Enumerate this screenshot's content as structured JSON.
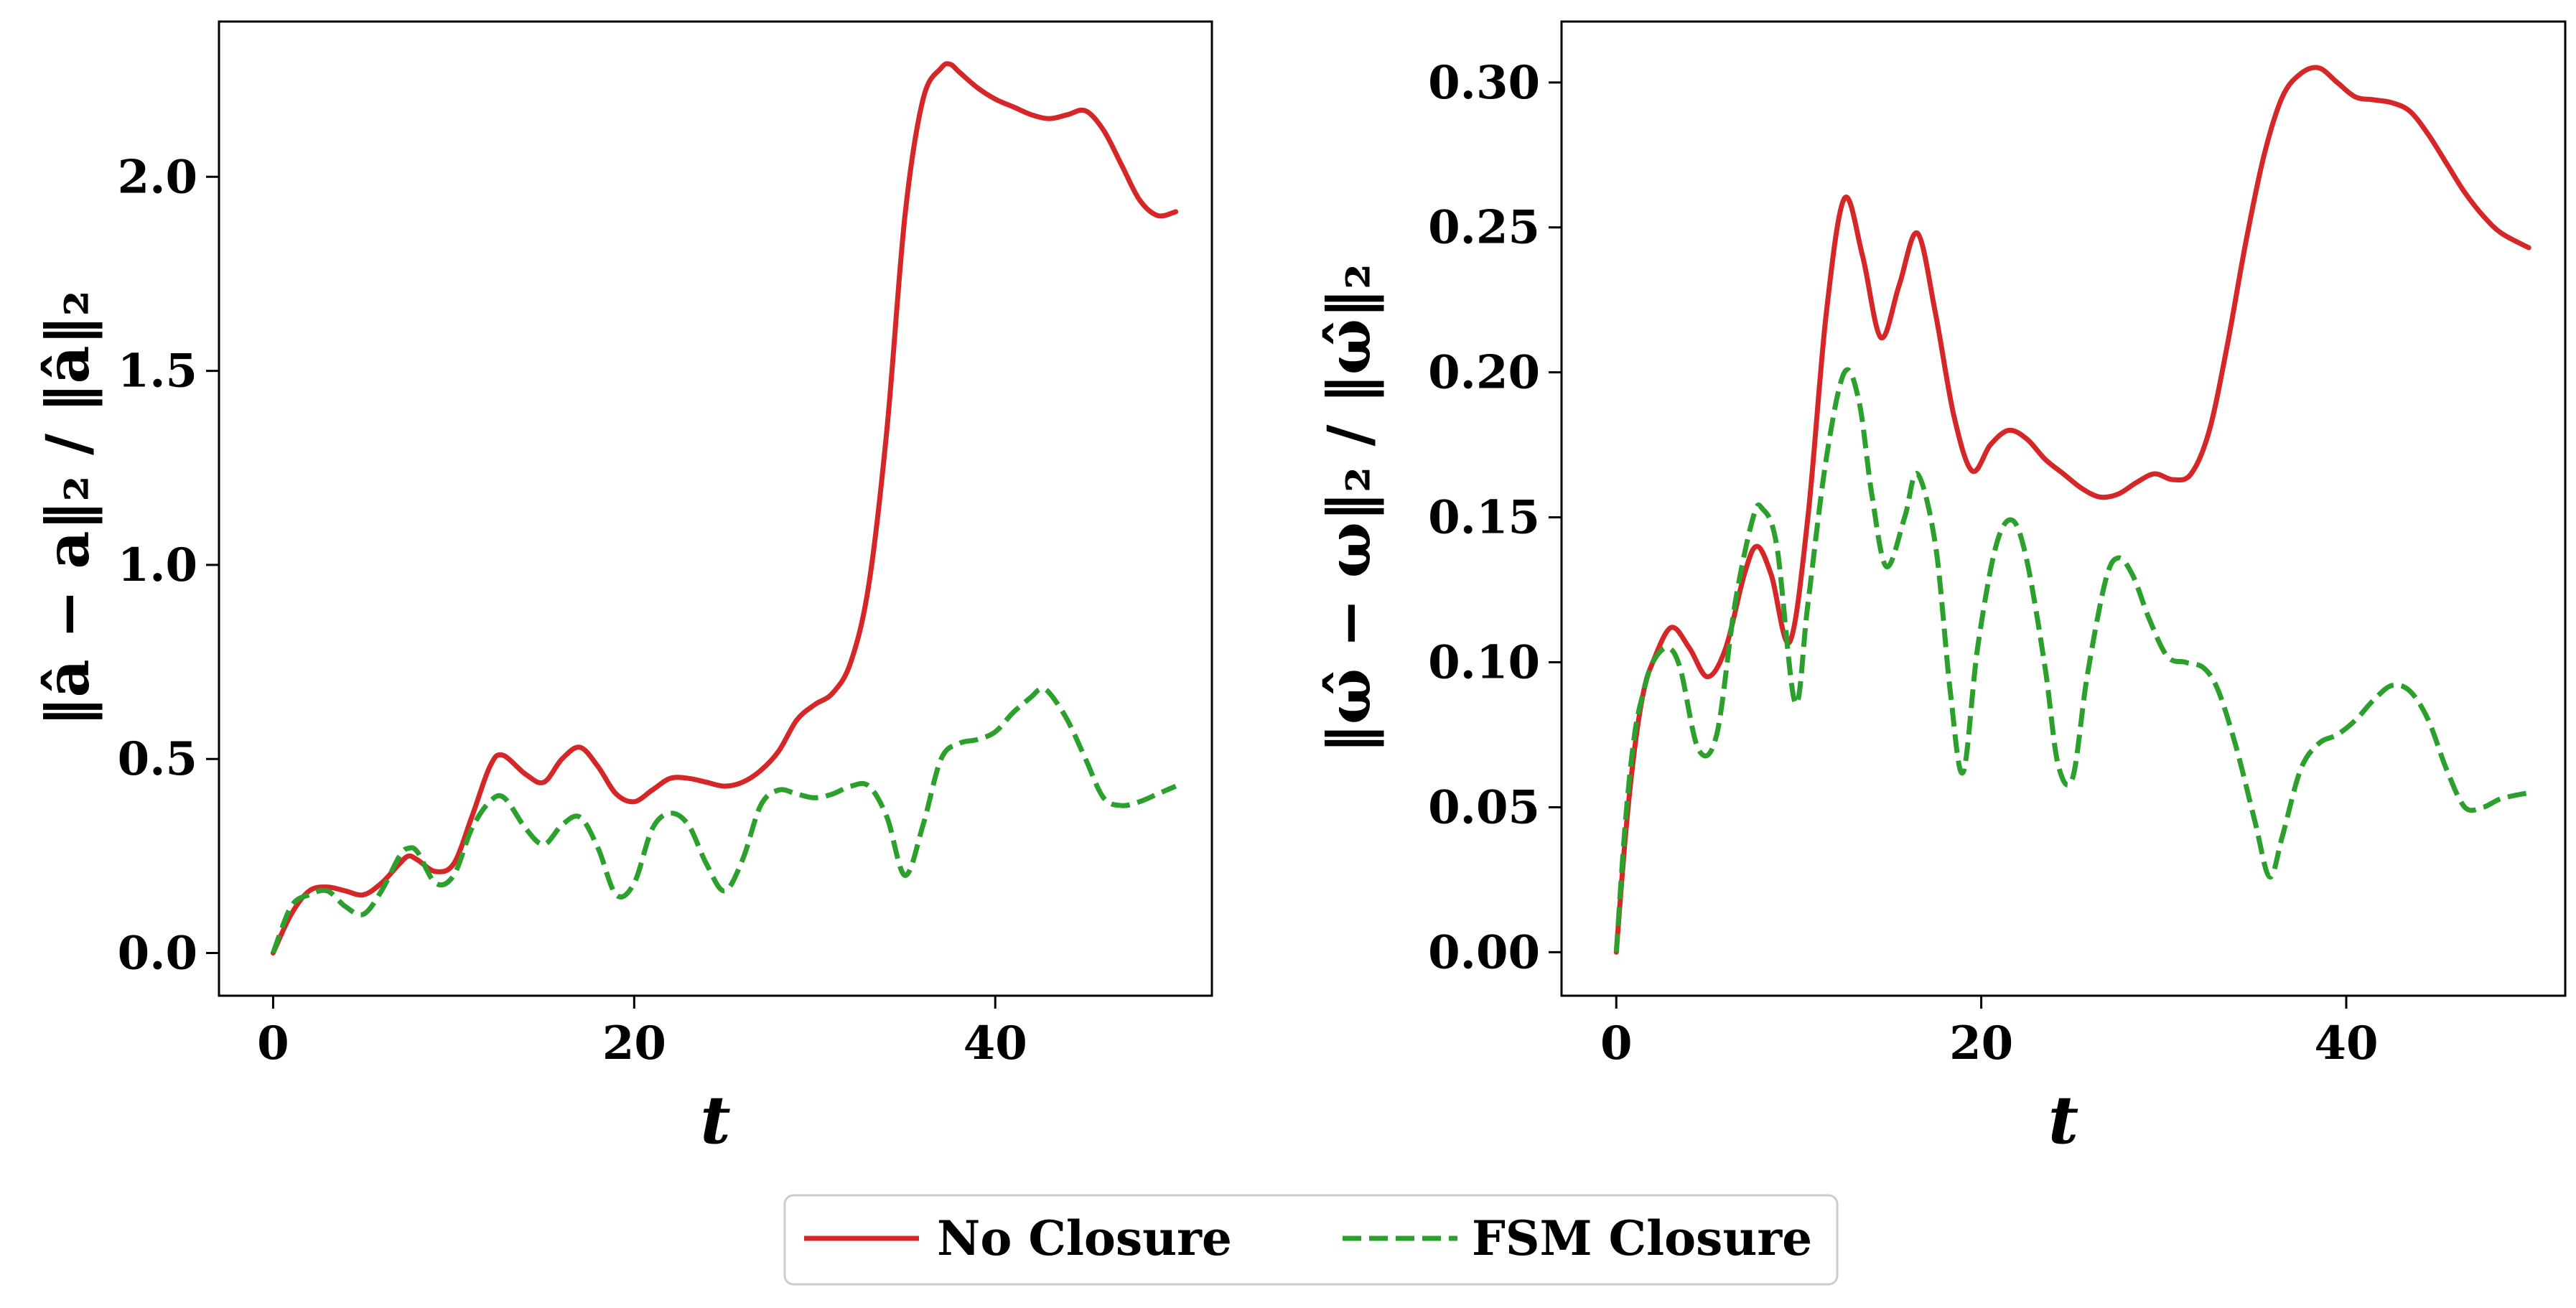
{
  "legend": {
    "placement": "bottom-center",
    "entries": [
      {
        "label": "No Closure",
        "color": "#d62728",
        "style": "solid"
      },
      {
        "label": "FSM Closure",
        "color": "#2ca02c",
        "style": "dashed"
      }
    ]
  },
  "chart_data": [
    {
      "type": "line",
      "xlabel": "t",
      "ylabel": "‖â − a‖₂ / ‖â‖₂",
      "xlim": [
        -3,
        52
      ],
      "ylim": [
        -0.11,
        2.4
      ],
      "xticks": [
        0,
        20,
        40
      ],
      "xtick_labels": [
        "0",
        "20",
        "40"
      ],
      "yticks": [
        0.0,
        0.5,
        1.0,
        1.5,
        2.0
      ],
      "ytick_labels": [
        "0.0",
        "0.5",
        "1.0",
        "1.5",
        "2.0"
      ],
      "grid": false,
      "series": [
        {
          "name": "No Closure",
          "color": "#d62728",
          "style": "solid",
          "x": [
            0,
            1,
            2,
            3,
            4,
            5,
            6,
            7,
            7.5,
            8,
            9,
            10,
            11,
            12,
            12.7,
            14,
            15,
            16,
            17,
            18,
            19,
            20,
            21,
            22,
            23,
            24,
            25,
            26,
            27,
            28,
            29,
            30,
            31,
            32,
            33,
            34,
            35,
            36,
            37,
            37.5,
            38,
            39,
            40,
            41,
            42,
            43,
            44,
            45,
            46,
            47,
            48,
            49,
            50
          ],
          "y": [
            0,
            0.1,
            0.16,
            0.17,
            0.16,
            0.15,
            0.18,
            0.23,
            0.25,
            0.24,
            0.21,
            0.23,
            0.35,
            0.48,
            0.51,
            0.46,
            0.44,
            0.5,
            0.53,
            0.48,
            0.41,
            0.39,
            0.42,
            0.45,
            0.45,
            0.44,
            0.43,
            0.44,
            0.47,
            0.52,
            0.6,
            0.64,
            0.67,
            0.75,
            0.95,
            1.35,
            1.9,
            2.2,
            2.28,
            2.29,
            2.27,
            2.23,
            2.2,
            2.18,
            2.16,
            2.15,
            2.16,
            2.17,
            2.12,
            2.03,
            1.94,
            1.9,
            1.91
          ]
        },
        {
          "name": "FSM Closure",
          "color": "#2ca02c",
          "style": "dashed",
          "x": [
            0,
            1,
            2,
            3,
            4,
            5,
            6,
            7,
            7.5,
            8,
            9,
            10,
            11,
            12,
            12.8,
            14,
            15,
            16,
            17,
            18,
            19,
            20,
            21,
            22,
            23,
            24,
            25,
            26,
            27,
            28,
            29,
            30,
            31,
            32,
            33,
            34,
            35,
            36,
            37,
            38,
            39,
            40,
            41,
            42,
            42.5,
            43,
            44,
            45,
            46,
            47,
            48,
            49,
            50
          ],
          "y": [
            0,
            0.12,
            0.15,
            0.16,
            0.12,
            0.1,
            0.16,
            0.25,
            0.27,
            0.26,
            0.18,
            0.2,
            0.32,
            0.39,
            0.4,
            0.32,
            0.28,
            0.33,
            0.35,
            0.27,
            0.15,
            0.18,
            0.32,
            0.36,
            0.33,
            0.23,
            0.16,
            0.24,
            0.38,
            0.42,
            0.41,
            0.4,
            0.41,
            0.43,
            0.43,
            0.35,
            0.2,
            0.33,
            0.5,
            0.54,
            0.55,
            0.57,
            0.62,
            0.66,
            0.68,
            0.67,
            0.6,
            0.5,
            0.4,
            0.38,
            0.39,
            0.41,
            0.43
          ]
        }
      ]
    },
    {
      "type": "line",
      "xlabel": "t",
      "ylabel": "‖ω̂ − ω‖₂ / ‖ω̂‖₂",
      "xlim": [
        -3,
        52
      ],
      "ylim": [
        -0.015,
        0.321
      ],
      "xticks": [
        0,
        20,
        40
      ],
      "xtick_labels": [
        "0",
        "20",
        "40"
      ],
      "yticks": [
        0.0,
        0.05,
        0.1,
        0.15,
        0.2,
        0.25,
        0.3
      ],
      "ytick_labels": [
        "0.00",
        "0.05",
        "0.10",
        "0.15",
        "0.20",
        "0.25",
        "0.30"
      ],
      "grid": false,
      "series": [
        {
          "name": "No Closure",
          "color": "#d62728",
          "style": "solid",
          "x": [
            0,
            0.5,
            1,
            1.5,
            2,
            3,
            4,
            5,
            6,
            7,
            7.7,
            8.5,
            9.5,
            10.5,
            11.5,
            12.5,
            13.5,
            14.5,
            15.5,
            16.5,
            17.5,
            18.5,
            19.5,
            20.5,
            21.5,
            22.5,
            23.5,
            24.5,
            25.5,
            26.5,
            27.5,
            28.5,
            29.5,
            30.5,
            31.5,
            32.5,
            33.5,
            34.5,
            35.5,
            36.5,
            37.5,
            38.5,
            39.5,
            40.5,
            41.5,
            42.5,
            43.5,
            44.5,
            45.5,
            46.5,
            47.5,
            48.5,
            50
          ],
          "y": [
            0,
            0.04,
            0.07,
            0.09,
            0.1,
            0.112,
            0.105,
            0.095,
            0.105,
            0.13,
            0.14,
            0.13,
            0.107,
            0.15,
            0.22,
            0.26,
            0.24,
            0.212,
            0.23,
            0.248,
            0.22,
            0.185,
            0.166,
            0.175,
            0.18,
            0.177,
            0.17,
            0.165,
            0.16,
            0.157,
            0.158,
            0.162,
            0.165,
            0.163,
            0.165,
            0.18,
            0.21,
            0.245,
            0.275,
            0.295,
            0.303,
            0.305,
            0.3,
            0.295,
            0.294,
            0.293,
            0.29,
            0.282,
            0.272,
            0.262,
            0.254,
            0.248,
            0.243
          ]
        },
        {
          "name": "FSM Closure",
          "color": "#2ca02c",
          "style": "dashed",
          "x": [
            0,
            0.5,
            1,
            1.5,
            2,
            2.8,
            3.5,
            4.5,
            5.5,
            6.5,
            7.5,
            8,
            8.8,
            9.8,
            10.5,
            11.5,
            12.5,
            13.3,
            14,
            14.8,
            15.8,
            16.5,
            17.5,
            18.3,
            19,
            19.8,
            20.8,
            21.7,
            22.5,
            23.5,
            24.2,
            25,
            25.8,
            26.8,
            27.5,
            28.3,
            29.2,
            30.2,
            31.2,
            32.2,
            33,
            34,
            35,
            35.8,
            36.5,
            37.5,
            38.5,
            39.5,
            40.5,
            41.5,
            42.5,
            43.5,
            44.5,
            45.5,
            46.5,
            47.5,
            48.5,
            50
          ],
          "y": [
            0,
            0.045,
            0.075,
            0.09,
            0.1,
            0.105,
            0.098,
            0.07,
            0.075,
            0.12,
            0.15,
            0.153,
            0.14,
            0.086,
            0.12,
            0.17,
            0.2,
            0.19,
            0.158,
            0.133,
            0.15,
            0.165,
            0.14,
            0.09,
            0.062,
            0.105,
            0.14,
            0.149,
            0.135,
            0.098,
            0.065,
            0.06,
            0.095,
            0.128,
            0.136,
            0.13,
            0.115,
            0.102,
            0.1,
            0.098,
            0.09,
            0.07,
            0.045,
            0.026,
            0.04,
            0.063,
            0.072,
            0.075,
            0.08,
            0.087,
            0.092,
            0.09,
            0.08,
            0.063,
            0.05,
            0.05,
            0.053,
            0.055
          ]
        }
      ]
    }
  ]
}
